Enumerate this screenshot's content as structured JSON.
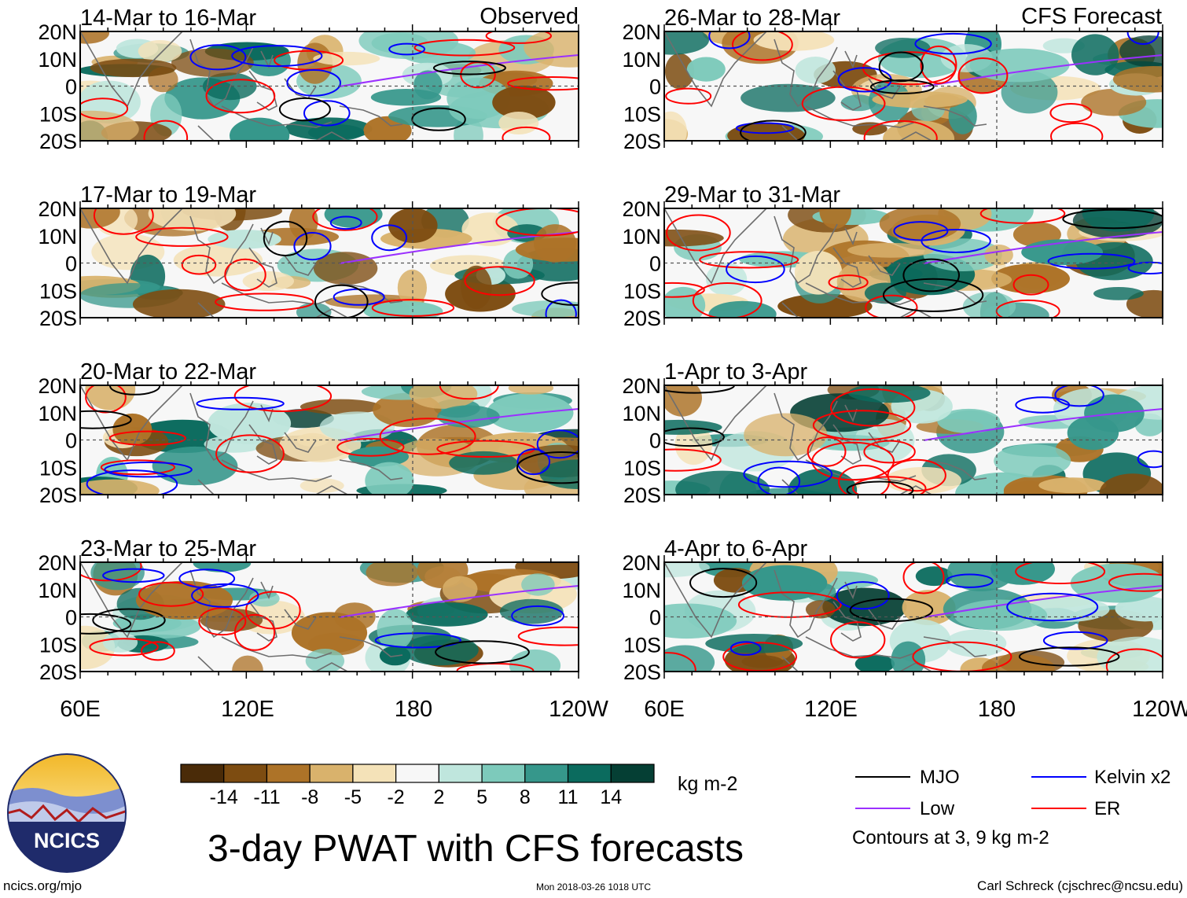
{
  "title": "3-day PWAT with CFS forecasts",
  "columns": {
    "left_label": "Observed",
    "right_label": "CFS Forecast"
  },
  "panels": [
    {
      "period": "14-Mar to 16-Mar",
      "type": "observed"
    },
    {
      "period": "17-Mar to 19-Mar",
      "type": "observed"
    },
    {
      "period": "20-Mar to 22-Mar",
      "type": "observed"
    },
    {
      "period": "23-Mar to 25-Mar",
      "type": "observed"
    },
    {
      "period": "26-Mar to 28-Mar",
      "type": "forecast"
    },
    {
      "period": "29-Mar to 31-Mar",
      "type": "forecast"
    },
    {
      "period": "1-Apr to 3-Apr",
      "type": "forecast"
    },
    {
      "period": "4-Apr to 6-Apr",
      "type": "forecast"
    }
  ],
  "axes": {
    "lat_labels": [
      "20N",
      "10N",
      "0",
      "10S",
      "20S"
    ],
    "lon_labels": [
      "60E",
      "120E",
      "180",
      "120W"
    ]
  },
  "colorbar": {
    "units": "kg m-2",
    "ticks": [
      "-14",
      "-11",
      "-8",
      "-5",
      "-2",
      "2",
      "5",
      "8",
      "11",
      "14"
    ],
    "colors": [
      "#4a2b08",
      "#7d4c11",
      "#ad7328",
      "#d9b26c",
      "#f4e2b8",
      "#f7f7f7",
      "#bfe6dd",
      "#7dcabb",
      "#36978b",
      "#0b6b5e",
      "#053f34"
    ]
  },
  "legend": {
    "items": [
      {
        "label": "MJO",
        "color": "#000000"
      },
      {
        "label": "Kelvin x2",
        "color": "#0000ff"
      },
      {
        "label": "Low",
        "color": "#9b30ff"
      },
      {
        "label": "ER",
        "color": "#ff0000"
      }
    ],
    "note": "Contours at 3, 9 kg m-2"
  },
  "logo": {
    "text": "NCICS"
  },
  "footer": {
    "url": "ncics.org/mjo",
    "timestamp": "Mon 2018-03-26 1018 UTC",
    "author": "Carl Schreck (cjschrec@ncsu.edu)"
  }
}
